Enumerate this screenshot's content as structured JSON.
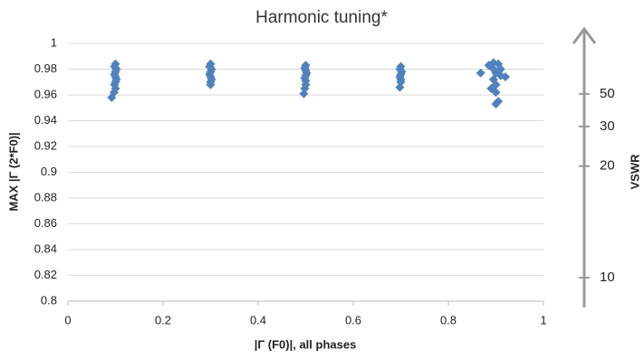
{
  "chart_data": {
    "type": "scatter",
    "title": "Harmonic tuning*",
    "x_label": "|Γ (F0)|, all phases",
    "y_label": "MAX |Γ (2*F0)|",
    "y2_label": "VSWR",
    "y2scale": "vswr",
    "color": "#4f81bd",
    "grid": true,
    "xlim": [
      0,
      1
    ],
    "xticks": [
      0,
      0.2,
      0.4,
      0.6,
      0.8,
      1
    ],
    "ylim": [
      0.8,
      1
    ],
    "yticks": [
      0.8,
      0.82,
      0.84,
      0.86,
      0.88,
      0.9,
      0.92,
      0.94,
      0.96,
      0.98,
      1
    ],
    "y2ticks": [
      50,
      30,
      20,
      10
    ],
    "x": [
      0.1,
      0.098,
      0.102,
      0.1,
      0.098,
      0.1,
      0.102,
      0.1,
      0.098,
      0.1,
      0.097,
      0.092,
      0.3,
      0.298,
      0.302,
      0.3,
      0.298,
      0.3,
      0.302,
      0.3,
      0.3,
      0.5,
      0.498,
      0.5,
      0.502,
      0.5,
      0.498,
      0.5,
      0.5,
      0.498,
      0.496,
      0.7,
      0.698,
      0.702,
      0.7,
      0.698,
      0.7,
      0.7,
      0.698,
      0.868,
      0.885,
      0.895,
      0.905,
      0.91,
      0.9,
      0.92,
      0.895,
      0.9,
      0.89,
      0.9,
      0.905,
      0.9,
      0.91,
      0.895
    ],
    "y": [
      0.984,
      0.982,
      0.98,
      0.978,
      0.976,
      0.974,
      0.972,
      0.97,
      0.968,
      0.965,
      0.962,
      0.958,
      0.984,
      0.982,
      0.98,
      0.978,
      0.976,
      0.974,
      0.972,
      0.97,
      0.968,
      0.983,
      0.981,
      0.979,
      0.977,
      0.975,
      0.973,
      0.971,
      0.968,
      0.965,
      0.961,
      0.982,
      0.98,
      0.978,
      0.976,
      0.974,
      0.972,
      0.97,
      0.966,
      0.977,
      0.983,
      0.985,
      0.984,
      0.98,
      0.977,
      0.974,
      0.972,
      0.968,
      0.965,
      0.962,
      0.955,
      0.953,
      0.975,
      0.98
    ]
  }
}
